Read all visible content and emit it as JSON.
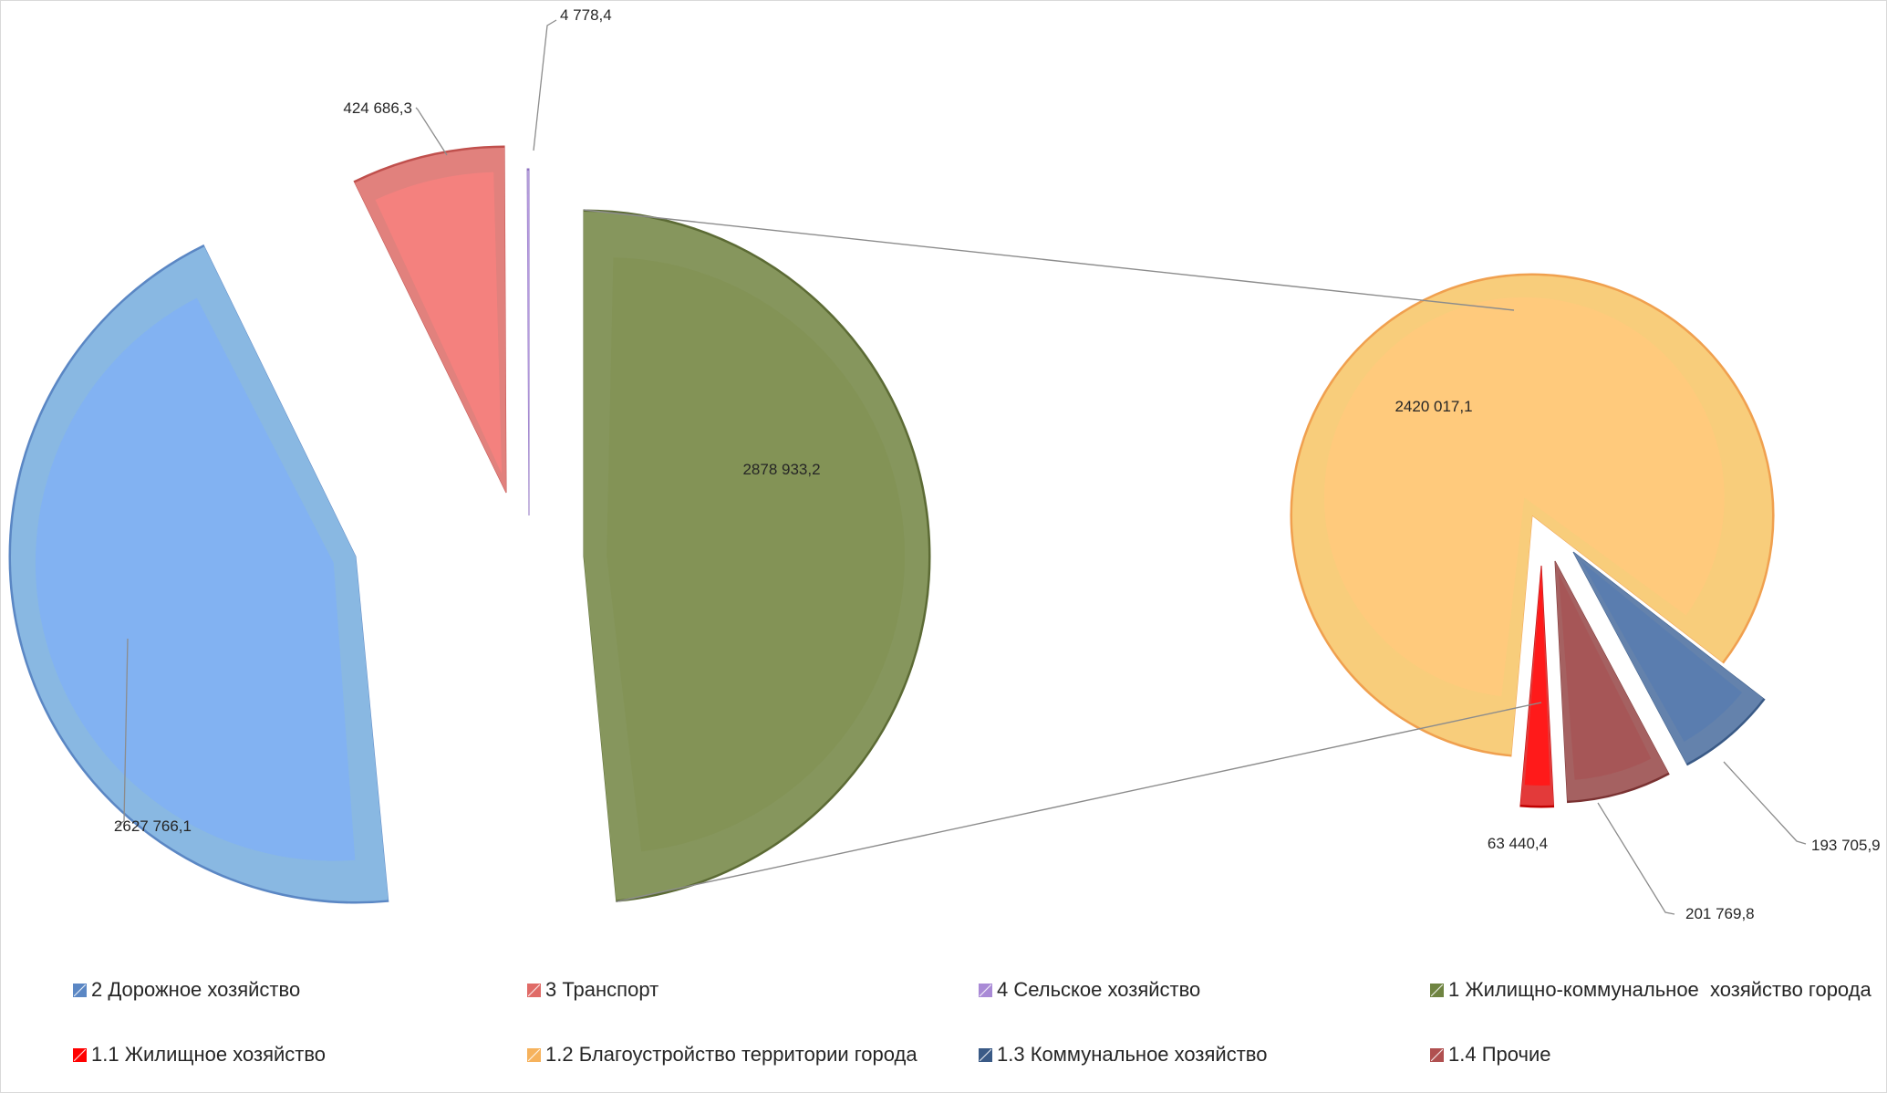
{
  "chart_data": {
    "type": "pie",
    "subtype": "bar-of-pie (pie of pie)",
    "primary_pie": {
      "slices": [
        {
          "label": "1 Жилищно-коммунальное  хозяйство города",
          "value": 2878933.2,
          "display": "2878 933,2",
          "color": "#839356",
          "dark": "#5c6b35",
          "light": "#a9ba7d"
        },
        {
          "label": "2 Дорожное хозяйство",
          "value": 2627766.1,
          "display": "2627 766,1",
          "color": "#82b2f2",
          "dark": "#5b87c4",
          "light": "#aee0fb"
        },
        {
          "label": "3 Транспорт",
          "value": 424686.3,
          "display": "424 686,3",
          "color": "#f4817e",
          "dark": "#c0504d",
          "light": "#fcaaa6"
        },
        {
          "label": "4 Сельское хозяйство",
          "value": 4778.4,
          "display": "4 778,4",
          "color": "#b79ce0",
          "dark": "#8e72c0",
          "light": "#d3c2ef"
        }
      ]
    },
    "secondary_pie": {
      "parent": "1 Жилищно-коммунальное  хозяйство города",
      "slices": [
        {
          "label": "1.1 Жилищное хозяйство",
          "value": 63440.4,
          "display": "63 440,4",
          "color": "#ff1a1a",
          "dark": "#c00000",
          "light": "#ff6a6a"
        },
        {
          "label": "1.4 Прочие",
          "value": 201769.8,
          "display": "201 769,8",
          "color": "#a65657",
          "dark": "#7a3232",
          "light": "#c98888"
        },
        {
          "label": "1.3 Коммунальное хозяйство",
          "value": 193705.9,
          "display": "193 705,9",
          "color": "#5a7daf",
          "dark": "#3a5a86",
          "light": "#86a4cc"
        },
        {
          "label": "1.2 Благоустройство территории города",
          "value": 2420017.1,
          "display": "2420 017,1",
          "color": "#ffca7c",
          "dark": "#f0a04f",
          "light": "#fff3a0"
        }
      ]
    },
    "legend": {
      "position": "bottom",
      "items": [
        {
          "label": "2 Дорожное хозяйство",
          "color": "#5b87c4"
        },
        {
          "label": "3 Транспорт",
          "color": "#e06b67"
        },
        {
          "label": "4 Сельское хозяйство",
          "color": "#a98ad6"
        },
        {
          "label": "1 Жилищно-коммунальное  хозяйство города",
          "color": "#6f8441"
        },
        {
          "label": "1.1 Жилищное хозяйство",
          "color": "#ff0000"
        },
        {
          "label": "1.2 Благоустройство территории города",
          "color": "#f6b25c"
        },
        {
          "label": "1.3 Коммунальное хозяйство",
          "color": "#3a5a86"
        },
        {
          "label": "1.4 Прочие",
          "color": "#b05050"
        }
      ]
    },
    "connector_color": "#8c8c8c"
  }
}
